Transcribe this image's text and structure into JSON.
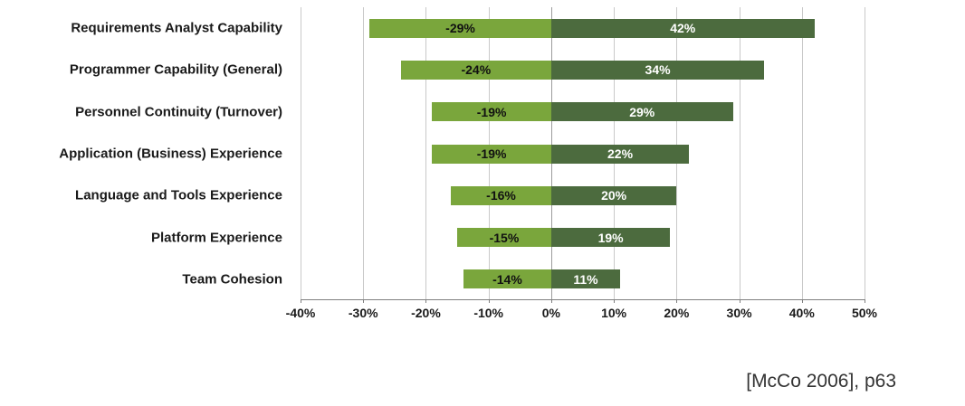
{
  "chart_data": {
    "type": "bar",
    "orientation": "horizontal",
    "title": "",
    "xlabel": "",
    "ylabel": "",
    "categories": [
      "Requirements Analyst Capability",
      "Programmer Capability (General)",
      "Personnel Continuity (Turnover)",
      "Application (Business) Experience",
      "Language and Tools Experience",
      "Platform Experience",
      "Team Cohesion"
    ],
    "series": [
      {
        "name": "decrease",
        "color": "#7AA63C",
        "values": [
          -29,
          -24,
          -19,
          -19,
          -16,
          -15,
          -14
        ]
      },
      {
        "name": "increase",
        "color": "#4C6B3E",
        "values": [
          42,
          34,
          29,
          22,
          20,
          19,
          11
        ]
      }
    ],
    "bar_labels": {
      "negative": [
        "-29%",
        "-24%",
        "-19%",
        "-19%",
        "-16%",
        "-15%",
        "-14%"
      ],
      "positive": [
        "42%",
        "34%",
        "29%",
        "22%",
        "20%",
        "19%",
        "11%"
      ]
    },
    "xlim": [
      -40,
      50
    ],
    "x_tick_values": [
      -40,
      -30,
      -20,
      -10,
      0,
      10,
      20,
      30,
      40,
      50
    ],
    "x_ticks": [
      "-40%",
      "-30%",
      "-20%",
      "-10%",
      "0%",
      "10%",
      "20%",
      "30%",
      "40%",
      "50%"
    ],
    "grid": true,
    "legend": false
  },
  "footer": {
    "citation": "[McCo 2006], p63"
  }
}
